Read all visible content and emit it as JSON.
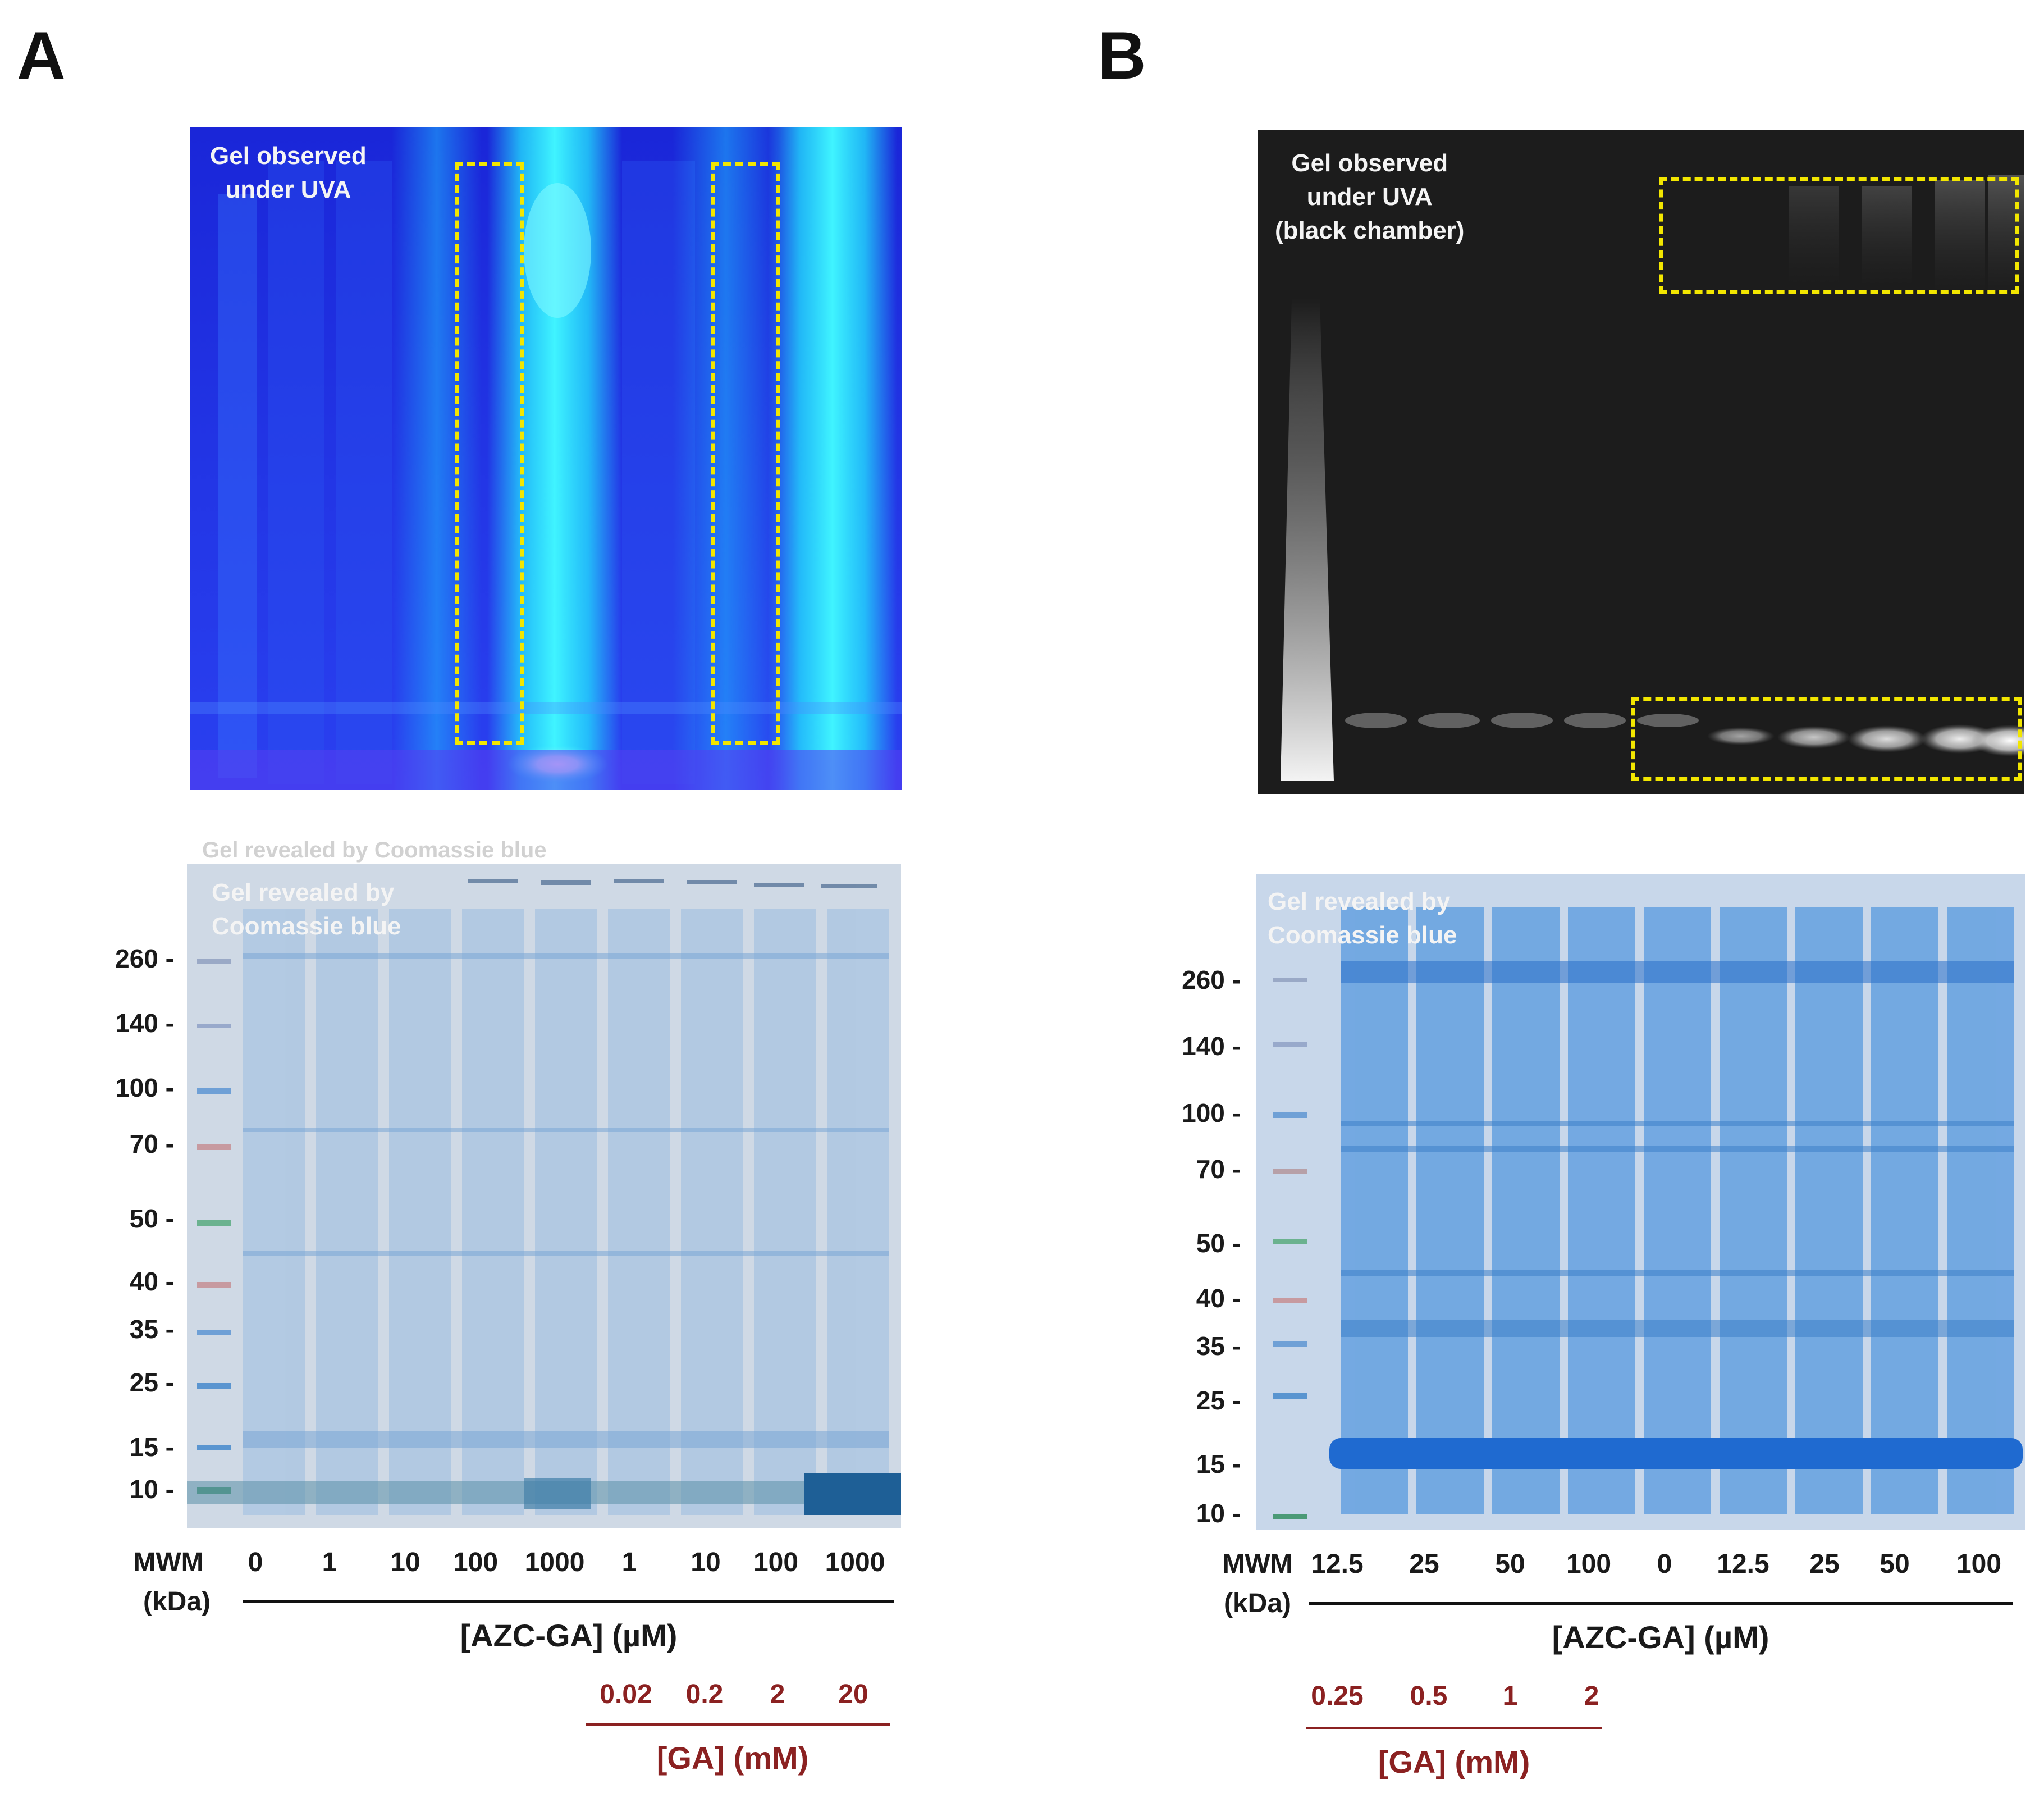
{
  "panel_a": {
    "letter": "A",
    "uv_caption": "Gel observed\nunder UVA",
    "ghost_caption": "Gel revealed by Coomassie blue",
    "coomassie_caption": "Gel revealed by\nCoomassie blue",
    "mw_markers": [
      "260 -",
      "140 -",
      "100 -",
      "70 -",
      "50 -",
      "40 -",
      "35 -",
      "25 -",
      "15 -",
      "10 -"
    ],
    "mwm_label": "MWM",
    "kda_label": "(kDa)",
    "lane_labels": [
      "0",
      "1",
      "10",
      "100",
      "1000",
      "1",
      "10",
      "100",
      "1000"
    ],
    "azc_axis_title": "[AZC-GA] (µM)",
    "ga_values": [
      "0.02",
      "0.2",
      "2",
      "20"
    ],
    "ga_axis_title": "[GA] (mM)"
  },
  "panel_b": {
    "letter": "B",
    "uv_caption": "Gel observed\nunder UVA\n(black chamber)",
    "coomassie_caption": "Gel revealed by\nCoomassie blue",
    "mw_markers": [
      "260 -",
      "140 -",
      "100 -",
      "70 -",
      "50 -",
      "40 -",
      "35 -",
      "25 -",
      "15 -",
      "10 -"
    ],
    "mwm_label": "MWM",
    "kda_label": "(kDa)",
    "lane_labels": [
      "12.5",
      "25",
      "50",
      "100",
      "0",
      "12.5",
      "25",
      "50",
      "100"
    ],
    "azc_axis_title": "[AZC-GA] (µM)",
    "ga_values": [
      "0.25",
      "0.5",
      "1",
      "2"
    ],
    "ga_axis_title": "[GA] (mM)"
  },
  "colors": {
    "uv_gel_a_bg": "#1f2fe0",
    "uv_fluorescence": "#22e8ff",
    "uv_gel_b_bg": "#1b1b1b",
    "coomassie_a_bg": "#cfd8e4",
    "coomassie_b_bg": "#c7d6ea",
    "band_blue": "#2a7fd4",
    "highlight_box": "#f2e600",
    "ga_red": "#8b2121"
  }
}
